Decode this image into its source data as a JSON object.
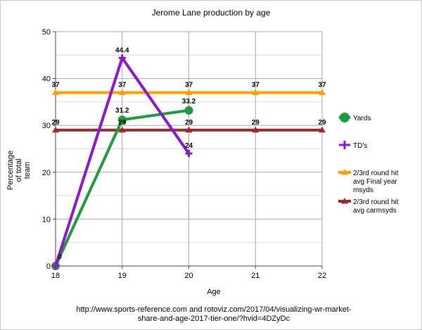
{
  "chart_data": {
    "type": "line",
    "title": "Jerome Lane production by age",
    "xlabel": "Age",
    "ylabel_lines": [
      "Percentage",
      "of total",
      "team"
    ],
    "x": [
      18,
      19,
      20,
      21,
      22
    ],
    "xlim": [
      18,
      22
    ],
    "ylim": [
      0,
      50
    ],
    "yticks": [
      0,
      10,
      20,
      30,
      40,
      50
    ],
    "grid": true,
    "legend_position": "right",
    "series": [
      {
        "name": "Yards",
        "color": "#1f9a3c",
        "marker": "circle",
        "x": [
          18,
          19,
          20
        ],
        "y": [
          0,
          31.2,
          33.2
        ],
        "labels": [
          "",
          "31.2",
          "33.2"
        ]
      },
      {
        "name": "TD's",
        "color": "#8b19c8",
        "marker": "cross",
        "x": [
          18,
          19,
          20
        ],
        "y": [
          0,
          44.4,
          24
        ],
        "labels": [
          "0",
          "44.4",
          "24"
        ]
      },
      {
        "name_lines": [
          "2/3rd round hit",
          "avg Final year",
          "msyds"
        ],
        "color": "#ffa000",
        "marker": "triangle",
        "x": [
          18,
          19,
          20,
          21,
          22
        ],
        "y": [
          37,
          37,
          37,
          37,
          37
        ],
        "labels": [
          "37",
          "37",
          "37",
          "37",
          "37"
        ]
      },
      {
        "name_lines": [
          "2/3rd round hit",
          "avg carmsyds"
        ],
        "color": "#9b2c2c",
        "marker": "triangle",
        "x": [
          18,
          19,
          20,
          21,
          22
        ],
        "y": [
          29,
          29,
          29,
          29,
          29
        ],
        "labels": [
          "29",
          "29",
          "29",
          "29",
          "29"
        ]
      }
    ],
    "source_lines": [
      "http://www.sports-reference.com and rotoviz.com/2017/04/visualizing-wr-market-",
      "share-and-age-2017-tier-one/?hvid=4DZyDc"
    ]
  }
}
